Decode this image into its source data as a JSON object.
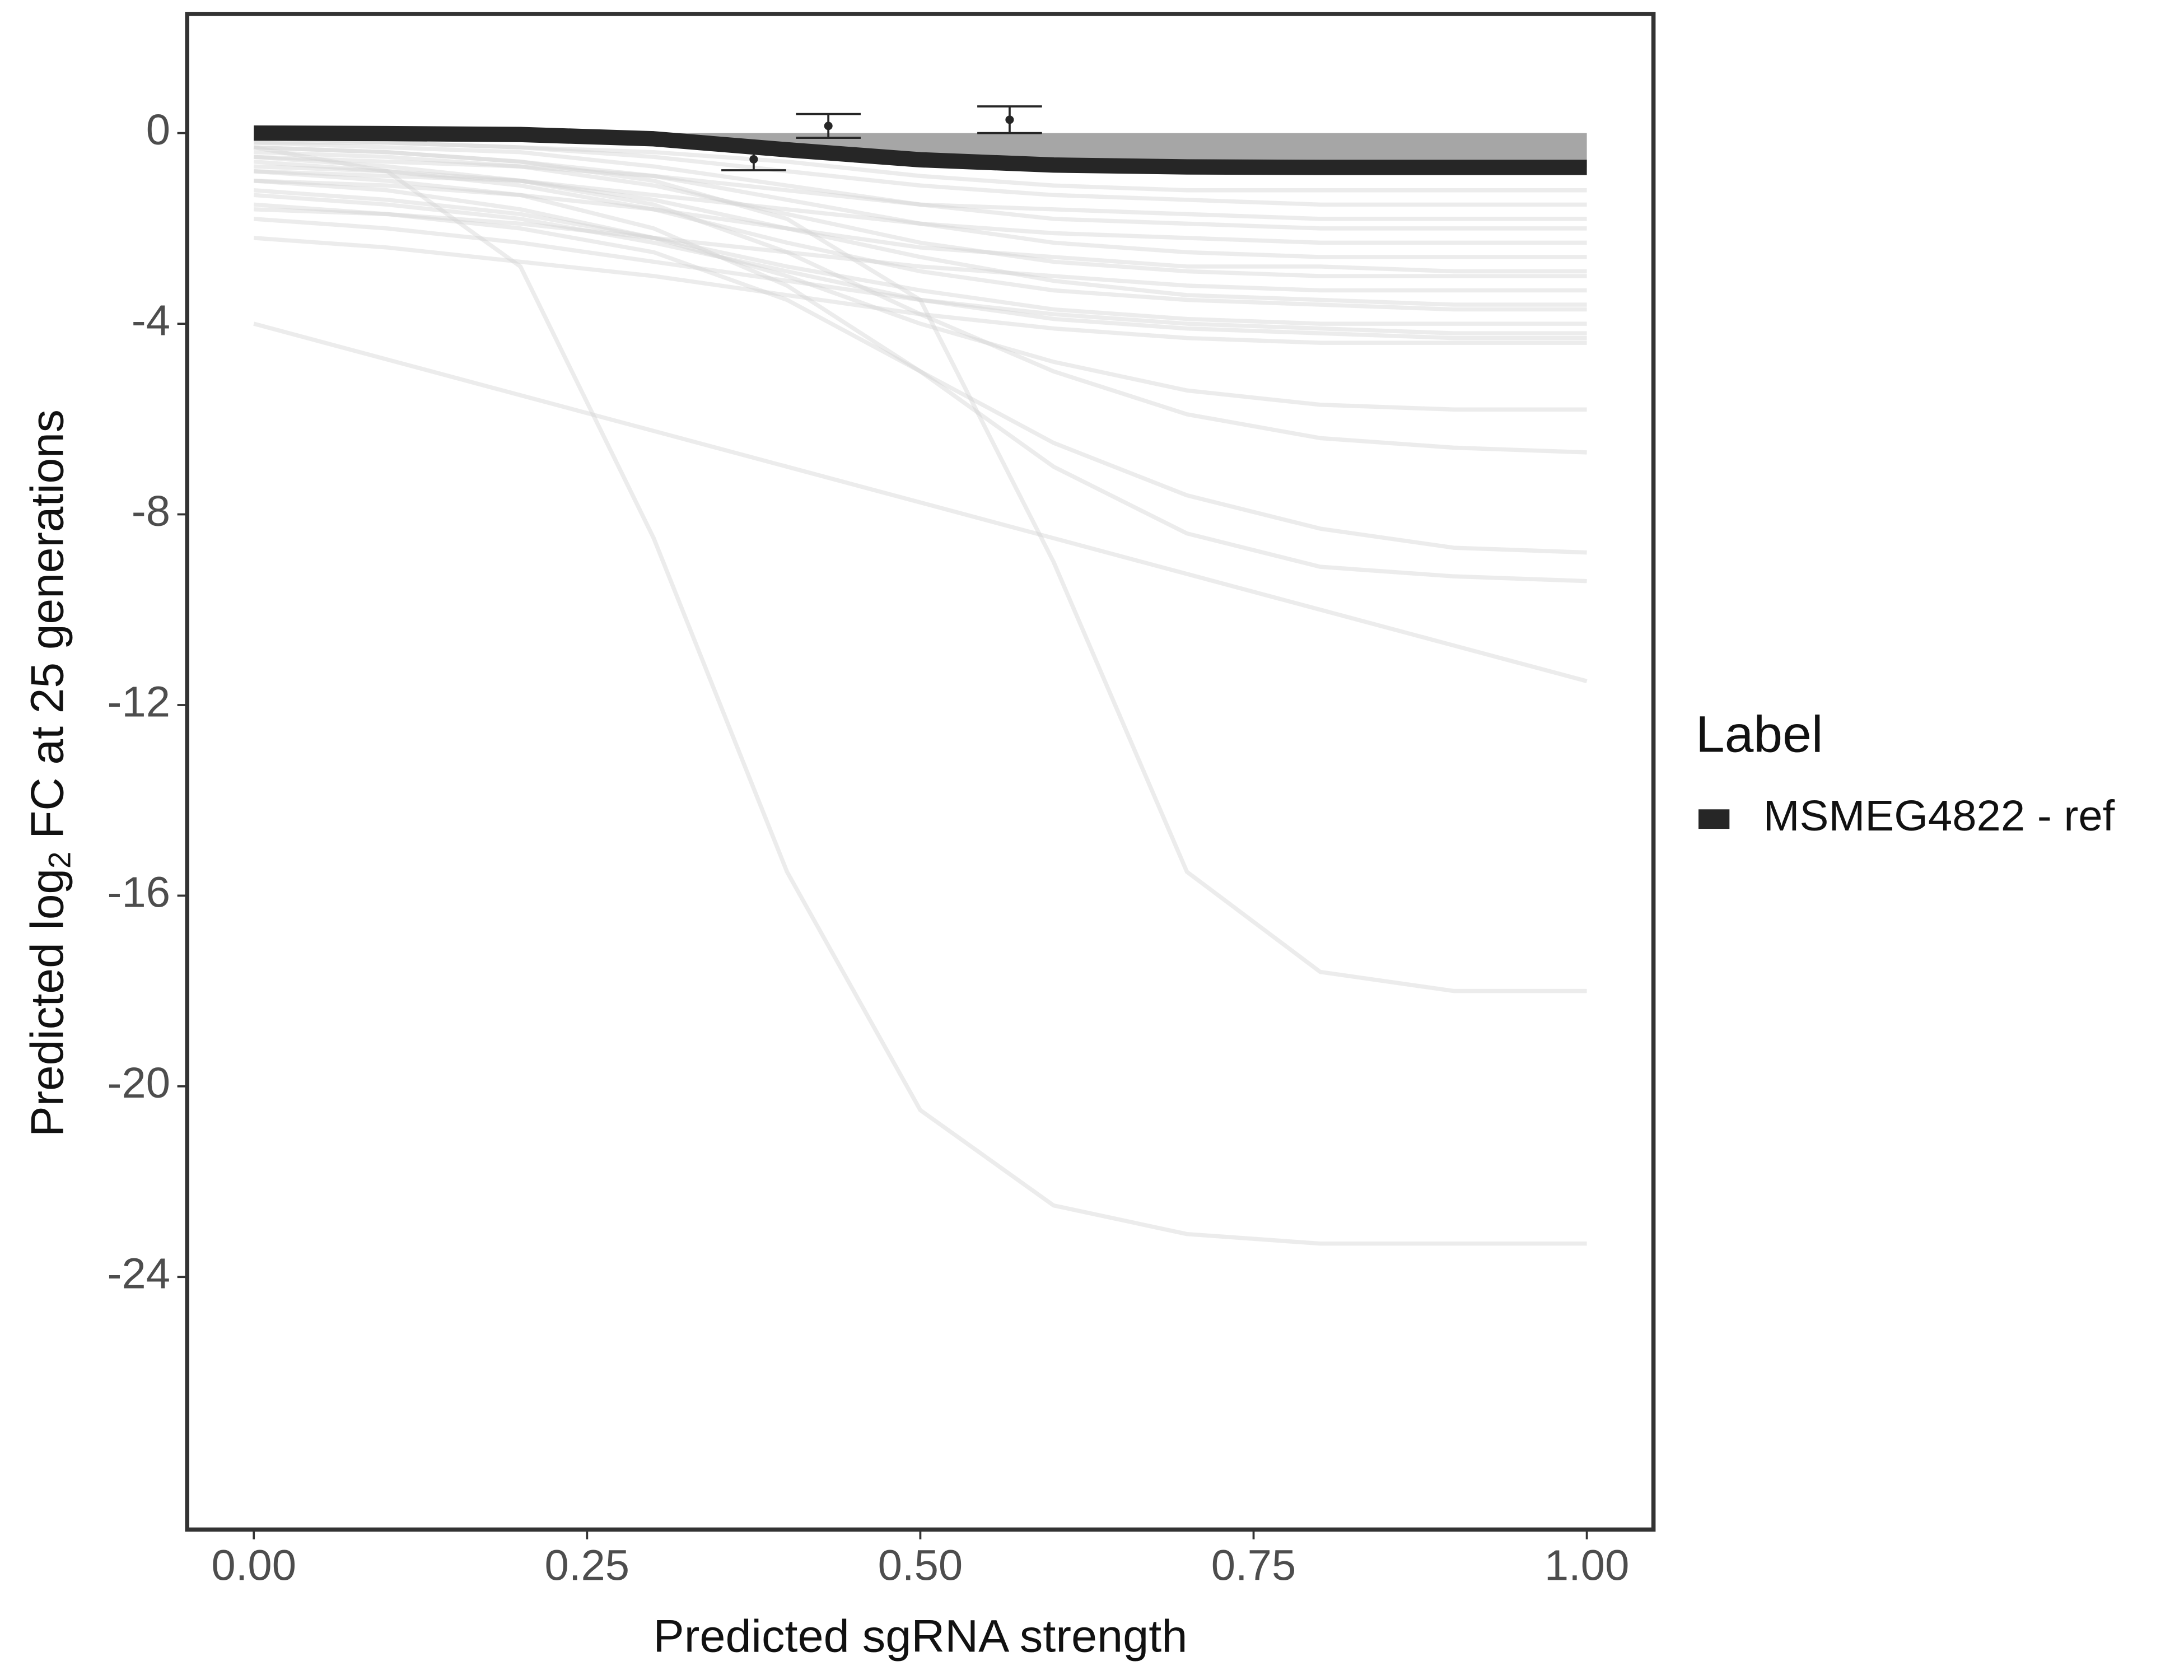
{
  "chart_data": {
    "type": "line",
    "xlabel": "Predicted sgRNA strength",
    "ylabel": {
      "text": "Predicted  log",
      "subscript": "2",
      "suffix": " FC at 25 generations"
    },
    "x": [
      0,
      0.1,
      0.2,
      0.3,
      0.4,
      0.5,
      0.6,
      0.7,
      0.8,
      0.9,
      1
    ],
    "xlim": [
      -0.05,
      1.05
    ],
    "xticks": [
      {
        "value": 0,
        "label": "0.00"
      },
      {
        "value": 0.25,
        "label": "0.25"
      },
      {
        "value": 0.5,
        "label": "0.50"
      },
      {
        "value": 0.75,
        "label": "0.75"
      },
      {
        "value": 1,
        "label": "1.00"
      }
    ],
    "ylim": [
      -29.3,
      2.5
    ],
    "yticks": [
      0,
      -4,
      -8,
      -12,
      -16,
      -20,
      -24
    ],
    "grid": false,
    "legend_title": "Label",
    "legend_position": "right",
    "series": [
      {
        "name": "MSMEG4822 - ref",
        "color": "#262626",
        "values": [
          0,
          -0.01,
          -0.03,
          -0.12,
          -0.35,
          -0.56,
          -0.67,
          -0.71,
          -0.72,
          -0.72,
          -0.72
        ]
      }
    ],
    "ribbon_color": "#a6a6a6",
    "background_color": "#d4d4d4",
    "background_lines": [
      {
        "values": [
          -0.3,
          -0.8,
          -2.8,
          -8.5,
          -15.5,
          -20.5,
          -22.5,
          -23.1,
          -23.3,
          -23.3,
          -23.3
        ]
      },
      {
        "values": [
          -0.3,
          -0.4,
          -0.6,
          -1,
          -1.8,
          -3.5,
          -9,
          -15.5,
          -17.6,
          -18,
          -18
        ]
      },
      {
        "values": [
          -4,
          -4.75,
          -5.5,
          -6.25,
          -7,
          -7.75,
          -8.5,
          -9.25,
          -10,
          -10.75,
          -11.5
        ]
      },
      {
        "values": [
          -0.8,
          -1,
          -1.3,
          -2,
          -3.2,
          -5,
          -7,
          -8.4,
          -9.1,
          -9.3,
          -9.4
        ]
      },
      {
        "values": [
          -1.5,
          -1.7,
          -2,
          -2.5,
          -3.5,
          -5,
          -6.5,
          -7.6,
          -8.3,
          -8.7,
          -8.8
        ]
      },
      {
        "values": [
          -0.5,
          -0.7,
          -1,
          -1.5,
          -2.5,
          -3.8,
          -5,
          -5.9,
          -6.4,
          -6.6,
          -6.7
        ]
      },
      {
        "values": [
          -1,
          -1.2,
          -1.6,
          -2.2,
          -3,
          -4,
          -4.8,
          -5.4,
          -5.7,
          -5.8,
          -5.8
        ]
      },
      {
        "values": [
          -2.2,
          -2.4,
          -2.7,
          -3,
          -3.4,
          -3.8,
          -4.1,
          -4.3,
          -4.4,
          -4.4,
          -4.4
        ]
      },
      {
        "values": [
          -1.8,
          -2,
          -2.3,
          -2.7,
          -3.1,
          -3.5,
          -3.8,
          -4,
          -4.1,
          -4.2,
          -4.2
        ]
      },
      {
        "values": [
          -1.2,
          -1.4,
          -1.7,
          -2.2,
          -2.8,
          -3.3,
          -3.7,
          -3.9,
          -4,
          -4,
          -4
        ]
      },
      {
        "values": [
          -0.6,
          -0.8,
          -1.1,
          -1.6,
          -2.3,
          -2.9,
          -3.3,
          -3.5,
          -3.6,
          -3.7,
          -3.7
        ]
      },
      {
        "values": [
          -1.6,
          -1.7,
          -1.9,
          -2.2,
          -2.5,
          -2.8,
          -3,
          -3.2,
          -3.3,
          -3.3,
          -3.3
        ]
      },
      {
        "values": [
          -0.4,
          -0.5,
          -0.7,
          -1.1,
          -1.7,
          -2.3,
          -2.7,
          -2.9,
          -3,
          -3,
          -3
        ]
      },
      {
        "values": [
          -1,
          -1.1,
          -1.3,
          -1.6,
          -2,
          -2.4,
          -2.6,
          -2.8,
          -2.8,
          -2.9,
          -2.9
        ]
      },
      {
        "values": [
          -0.3,
          -0.4,
          -0.6,
          -0.9,
          -1.4,
          -1.9,
          -2.3,
          -2.5,
          -2.6,
          -2.6,
          -2.6
        ]
      },
      {
        "values": [
          -0.8,
          -0.9,
          -1,
          -1.3,
          -1.6,
          -1.9,
          -2.1,
          -2.2,
          -2.3,
          -2.3,
          -2.3
        ]
      },
      {
        "values": [
          -0.2,
          -0.3,
          -0.4,
          -0.7,
          -1.1,
          -1.5,
          -1.8,
          -1.9,
          -2,
          -2,
          -2
        ]
      },
      {
        "values": [
          -0.5,
          -0.6,
          -0.7,
          -0.9,
          -1.2,
          -1.5,
          -1.6,
          -1.7,
          -1.8,
          -1.8,
          -1.8
        ]
      },
      {
        "values": [
          -0.2,
          -0.2,
          -0.3,
          -0.5,
          -0.8,
          -1.1,
          -1.3,
          -1.4,
          -1.5,
          -1.5,
          -1.5
        ]
      },
      {
        "values": [
          -0.1,
          -0.2,
          -0.3,
          -0.4,
          -0.6,
          -0.9,
          -1.1,
          -1.2,
          -1.2,
          -1.2,
          -1.2
        ]
      },
      {
        "values": [
          -0.7,
          -0.8,
          -1,
          -1.4,
          -2,
          -2.6,
          -3.1,
          -3.4,
          -3.5,
          -3.6,
          -3.6
        ]
      },
      {
        "values": [
          -1.3,
          -1.5,
          -1.8,
          -2.3,
          -2.9,
          -3.5,
          -3.9,
          -4.1,
          -4.2,
          -4.3,
          -4.3
        ]
      }
    ],
    "points": {
      "color": "#262626",
      "x": [
        0.375,
        0.431,
        0.567
      ],
      "y": [
        -0.55,
        0.15,
        0.28
      ],
      "err": [
        0.23,
        0.25,
        0.28
      ]
    }
  }
}
